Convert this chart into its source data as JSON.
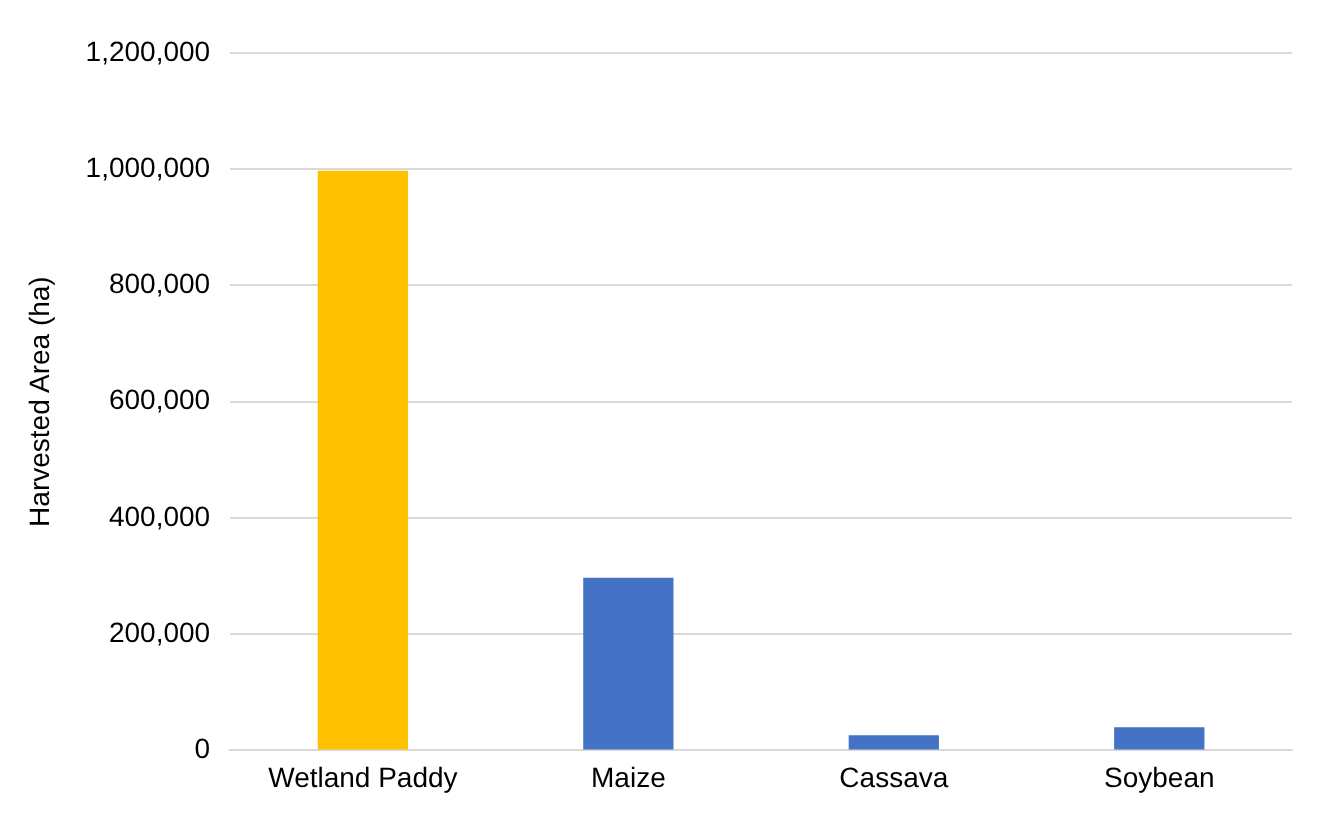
{
  "chart_data": {
    "type": "bar",
    "ylabel": "Harvested Area (ha)",
    "categories": [
      "Wetland Paddy",
      "Maize",
      "Cassava",
      "Soybean"
    ],
    "values": [
      997000,
      297000,
      26000,
      40000
    ],
    "colors": [
      "#ffc000",
      "#4472c4",
      "#4472c4",
      "#4472c4"
    ],
    "ylim": [
      0,
      1200000
    ],
    "yticks": [
      0,
      {
        "value": 200000,
        "label": "200,000"
      },
      {
        "value": 400000,
        "label": "400,000"
      },
      {
        "value": 600000,
        "label": "600,000"
      },
      {
        "value": 800000,
        "label": "800,000"
      },
      {
        "value": 1000000,
        "label": "1,000,000"
      },
      {
        "value": 1200000,
        "label": "1,200,000"
      }
    ],
    "grid": "y"
  }
}
